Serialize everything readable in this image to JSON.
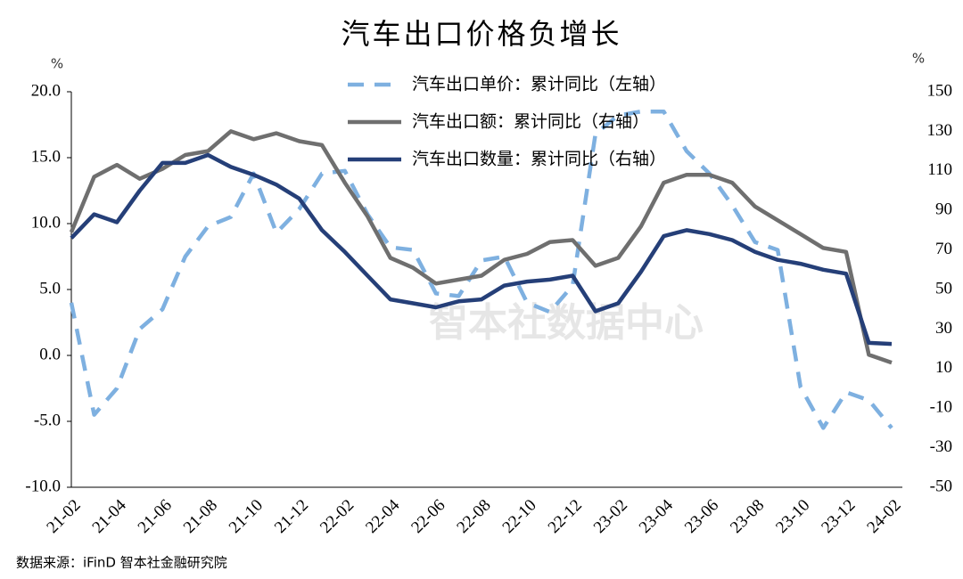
{
  "chart_data": {
    "type": "line",
    "title": "汽车出口价格负增长",
    "y_unit": "%",
    "y2_unit": "%",
    "watermark": "智本社数据中心",
    "source": "数据来源：iFinD 智本社金融研究院",
    "categories": [
      "21-02",
      null,
      "21-04",
      null,
      "21-06",
      null,
      "21-08",
      null,
      "21-10",
      null,
      "21-12",
      null,
      "22-02",
      null,
      "22-04",
      null,
      "22-06",
      null,
      "22-08",
      null,
      "22-10",
      null,
      "22-12",
      null,
      "23-02",
      null,
      "23-04",
      null,
      "23-06",
      null,
      "23-08",
      null,
      "23-10",
      null,
      "23-12",
      null,
      "24-02"
    ],
    "ylim": [
      -10,
      20
    ],
    "yticks": [
      {
        "value": -10,
        "label": "-10.0"
      },
      {
        "value": -5,
        "label": "-5.0"
      },
      {
        "value": 0,
        "label": "0.0"
      },
      {
        "value": 5,
        "label": "5.0"
      },
      {
        "value": 10,
        "label": "10.0"
      },
      {
        "value": 15,
        "label": "15.0"
      },
      {
        "value": 20,
        "label": "20.0"
      }
    ],
    "y2lim": [
      -50,
      150
    ],
    "y2ticks": [
      -50,
      -30,
      -10,
      10,
      30,
      50,
      70,
      90,
      110,
      130,
      150
    ],
    "series": [
      {
        "name": "汽车出口单价：累计同比（左轴）",
        "color": "#7eb0e0",
        "dash": true,
        "axis": "y",
        "values": [
          4.0,
          -4.5,
          -2.5,
          2.0,
          3.5,
          7.5,
          9.8,
          10.5,
          13.8,
          9.3,
          11.1,
          13.8,
          14.0,
          10.7,
          8.2,
          8.0,
          4.7,
          4.5,
          7.2,
          7.5,
          4.0,
          3.3,
          5.3,
          16.8,
          18.2,
          18.5,
          18.5,
          15.5,
          13.8,
          11.4,
          8.6,
          8.0,
          -2.4,
          -5.5,
          -2.8,
          -3.4,
          -5.5
        ]
      },
      {
        "name": "汽车出口额：累计同比（右轴）",
        "color": "#6f6f6f",
        "dash": false,
        "axis": "y2",
        "values": [
          79,
          107,
          113,
          106,
          111,
          118,
          120,
          130,
          126,
          129,
          125,
          123,
          104,
          87,
          66,
          61,
          53,
          55,
          57,
          65,
          68,
          74,
          75,
          62,
          66,
          82,
          104,
          108,
          108,
          104,
          92,
          85,
          78,
          71,
          69,
          17,
          13
        ]
      },
      {
        "name": "汽车出口数量：累计同比（右轴）",
        "color": "#253f78",
        "dash": false,
        "axis": "y2",
        "values": [
          76,
          88,
          84,
          100,
          114,
          114,
          118,
          112,
          108,
          103,
          96,
          80,
          69,
          57,
          45,
          43,
          41,
          44,
          45,
          52,
          54,
          55,
          57,
          39,
          43,
          59,
          77,
          80,
          78,
          75,
          69,
          65,
          63,
          60,
          58,
          23,
          22.5
        ]
      }
    ]
  }
}
